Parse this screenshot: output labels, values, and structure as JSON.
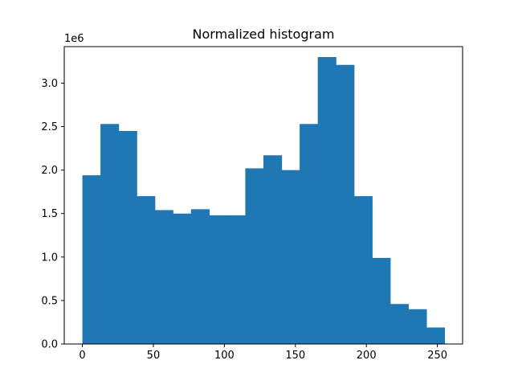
{
  "chart_data": {
    "type": "bar",
    "title": "Normalized histogram",
    "xlabel": "",
    "ylabel": "",
    "y_scale_label": "1e6",
    "bar_color": "#1f77b4",
    "grid": false,
    "legend": "none",
    "xlim": [
      -12.75,
      267.75
    ],
    "ylim": [
      0,
      3.42
    ],
    "x_ticks": [
      0,
      50,
      100,
      150,
      200,
      250
    ],
    "x_tick_labels": [
      "0",
      "50",
      "100",
      "150",
      "200",
      "250"
    ],
    "y_ticks": [
      0.0,
      0.5,
      1.0,
      1.5,
      2.0,
      2.5,
      3.0
    ],
    "y_tick_labels": [
      "0.0",
      "0.5",
      "1.0",
      "1.5",
      "2.0",
      "2.5",
      "3.0"
    ],
    "bin_edges": [
      0,
      12.75,
      25.5,
      38.25,
      51,
      63.75,
      76.5,
      89.25,
      102,
      114.75,
      127.5,
      140.25,
      153,
      165.75,
      178.5,
      191.25,
      204,
      216.75,
      229.5,
      242.25,
      255
    ],
    "values": [
      1.94,
      2.53,
      2.45,
      1.7,
      1.54,
      1.5,
      1.55,
      1.48,
      1.48,
      2.02,
      2.17,
      2.0,
      2.53,
      3.3,
      3.21,
      1.7,
      0.99,
      0.46,
      0.4,
      0.19
    ]
  }
}
